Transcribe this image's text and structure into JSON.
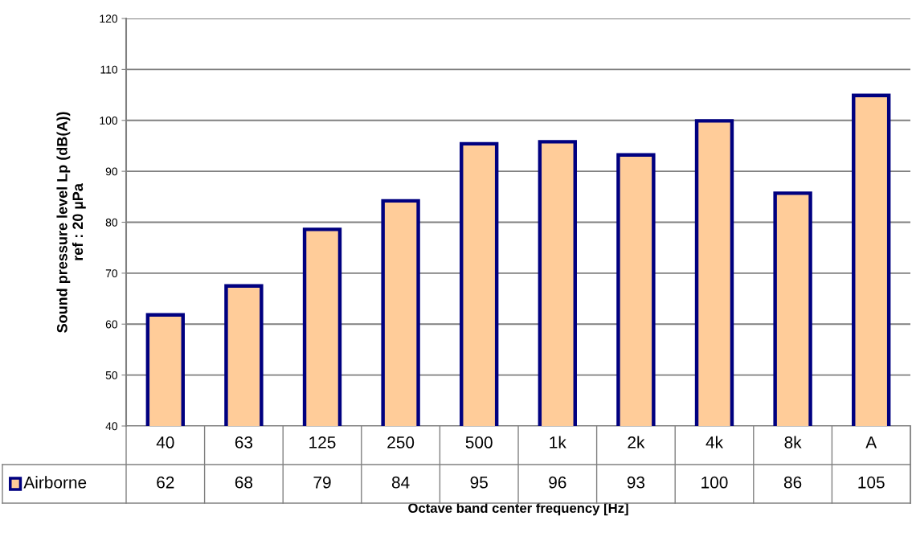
{
  "chart_data": {
    "type": "bar",
    "xlabel": "Octave band center frequency [Hz]",
    "ylabel": "Sound pressure level Lp (dB(A))\nref : 20 µPa",
    "categories": [
      "40",
      "63",
      "125",
      "250",
      "500",
      "1k",
      "2k",
      "4k",
      "8k",
      "A"
    ],
    "series": [
      {
        "name": "Airborne",
        "color": "#ffcc99",
        "values": [
          61.8,
          67.5,
          78.6,
          84.2,
          95.4,
          95.8,
          93.2,
          99.9,
          85.7,
          104.9
        ],
        "value_labels": [
          "62",
          "68",
          "79",
          "84",
          "95",
          "96",
          "93",
          "100",
          "86",
          "105"
        ]
      }
    ],
    "ylim": [
      40,
      120
    ],
    "yticks": [
      40,
      50,
      60,
      70,
      80,
      90,
      100,
      110,
      120
    ],
    "grid": "y",
    "legend": "bottom left"
  }
}
